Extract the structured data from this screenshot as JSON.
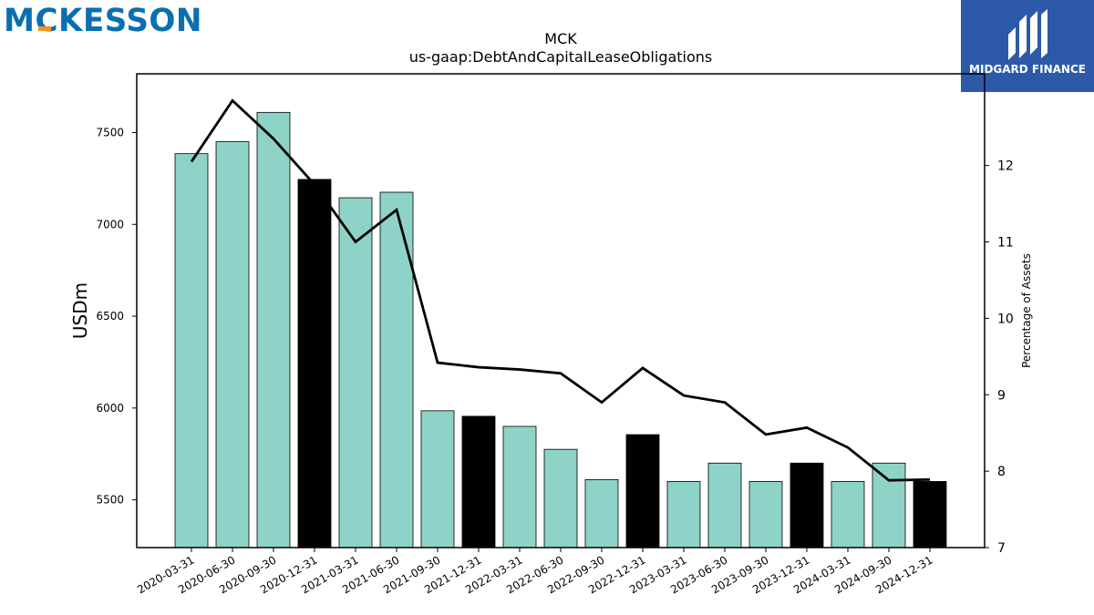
{
  "brand": {
    "left_logo": "MCKESSON",
    "right_logo": "MIDGARD FINANCE"
  },
  "colors": {
    "bar_default": "#8ed3c7",
    "bar_highlight": "#000000",
    "line": "#000000",
    "logo_left": "#0a6fb1",
    "logo_left_accent": "#f7941d",
    "logo_right_bg": "#2c5aa9"
  },
  "chart_data": {
    "type": "bar",
    "title": "MCK",
    "subtitle": "us-gaap:DebtAndCapitalLeaseObligations",
    "ylabel": "USDm",
    "y2label": "Percentage of Assets",
    "ylim": [
      5240,
      7820
    ],
    "y2lim": [
      7.0,
      13.2
    ],
    "yticks": [
      5500,
      6000,
      6500,
      7000,
      7500
    ],
    "y2ticks": [
      7,
      8,
      9,
      10,
      11,
      12
    ],
    "categories": [
      "2020-03-31",
      "2020-06-30",
      "2020-09-30",
      "2020-12-31",
      "2021-03-31",
      "2021-06-30",
      "2021-09-30",
      "2021-12-31",
      "2022-03-31",
      "2022-06-30",
      "2022-09-30",
      "2022-12-31",
      "2023-03-31",
      "2023-06-30",
      "2023-09-30",
      "2023-12-31",
      "2024-03-31",
      "2024-09-30",
      "2024-12-31"
    ],
    "series": [
      {
        "type": "bar",
        "values": [
          7385,
          7450,
          7610,
          7245,
          7145,
          7175,
          5985,
          5955,
          5900,
          5775,
          5610,
          5855,
          5600,
          5700,
          5600,
          5700,
          5600,
          5700,
          5600
        ],
        "highlight": [
          false,
          false,
          false,
          true,
          false,
          false,
          false,
          true,
          false,
          false,
          false,
          true,
          false,
          false,
          false,
          true,
          false,
          false,
          true
        ]
      },
      {
        "type": "line",
        "axis": "right",
        "values": [
          12.05,
          12.85,
          12.35,
          11.75,
          11.0,
          11.42,
          9.42,
          9.36,
          9.33,
          9.28,
          8.9,
          9.35,
          8.99,
          8.9,
          8.48,
          8.57,
          8.31,
          7.88,
          7.89
        ]
      }
    ]
  }
}
